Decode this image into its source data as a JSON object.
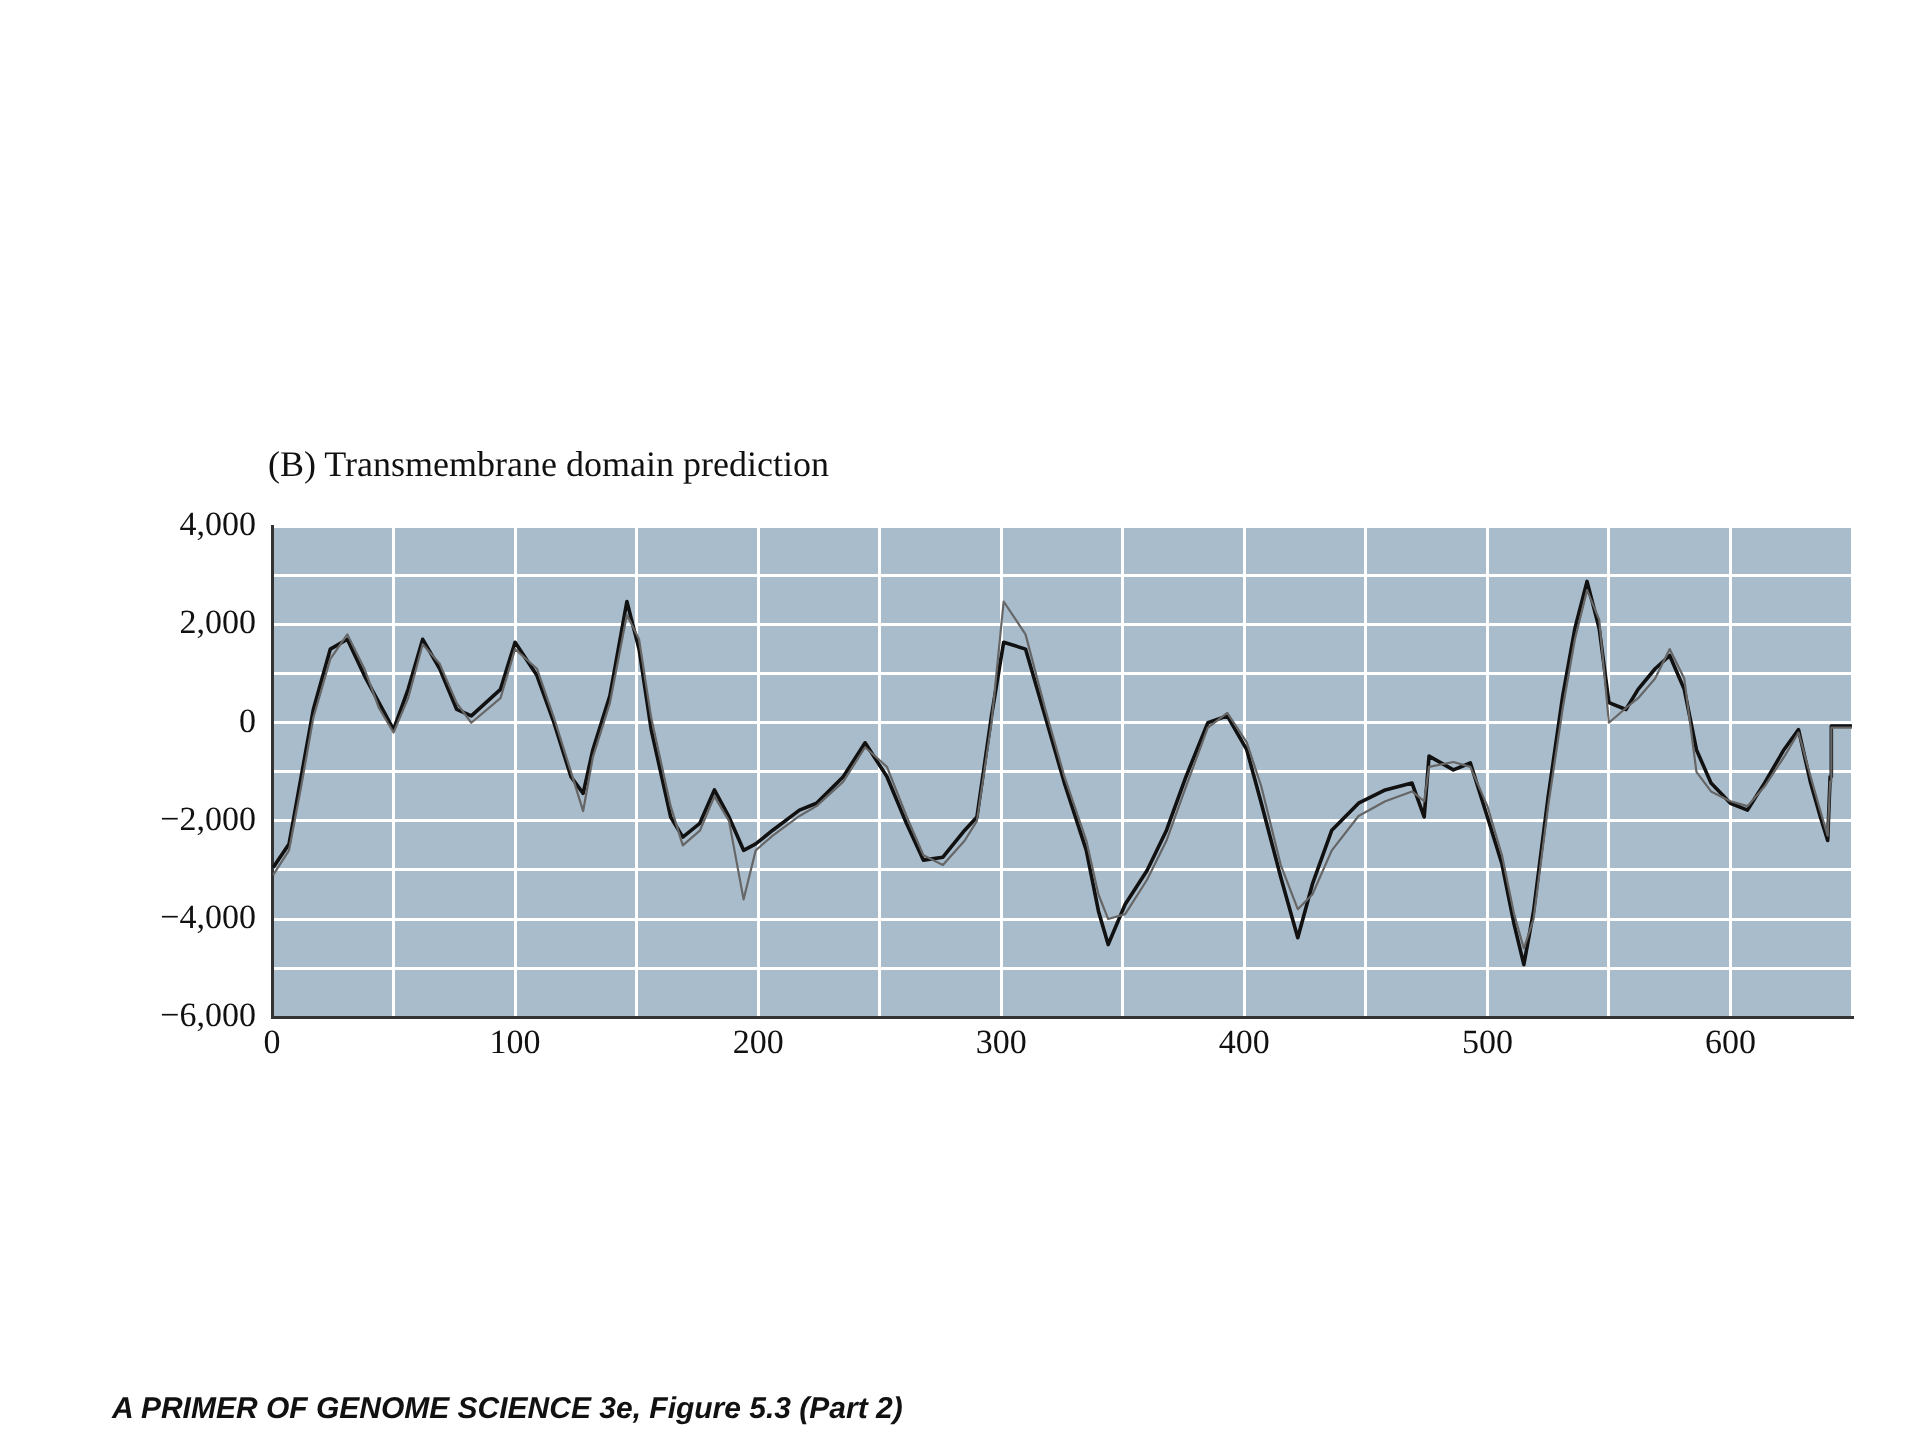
{
  "chart_data": {
    "type": "line",
    "title": "(B) Transmembrane domain prediction",
    "annotations": [
      "A PRIMER OF GENOME SCIENCE 3e, Figure 5.3 (Part 2)"
    ],
    "x": [
      0.5,
      7,
      12,
      17,
      24,
      31,
      38,
      44,
      50,
      56,
      62,
      69,
      76,
      82,
      94,
      100,
      109,
      116,
      123,
      128,
      132,
      139,
      146,
      151,
      156,
      164,
      169,
      176,
      182,
      188,
      194,
      199,
      206,
      217,
      224,
      235,
      244,
      253,
      261,
      268,
      276,
      285,
      290,
      296,
      301,
      310,
      318,
      326,
      335,
      340,
      344,
      351,
      360,
      368,
      376,
      385,
      393,
      401,
      407,
      415,
      422,
      428,
      436,
      447,
      458,
      469,
      474,
      476,
      486,
      493,
      500,
      506,
      511,
      515,
      519,
      525,
      531,
      536,
      541,
      546,
      550,
      557,
      562,
      569,
      575,
      581,
      586,
      592,
      600,
      607,
      614,
      622,
      628,
      633,
      637,
      640,
      641,
      641.5,
      650
    ],
    "series": [
      {
        "color": "#111111",
        "values": [
          -2950,
          -2470,
          -1100,
          270,
          1500,
          1700,
          960,
          410,
          -140,
          680,
          1700,
          1100,
          270,
          140,
          680,
          1640,
          960,
          0,
          -1100,
          -1440,
          -550,
          550,
          2470,
          1500,
          -140,
          -1920,
          -2330,
          -2050,
          -1370,
          -1920,
          -2600,
          -2470,
          -2190,
          -1780,
          -1640,
          -1100,
          -410,
          -1100,
          -2050,
          -2800,
          -2740,
          -2190,
          -1920,
          140,
          1640,
          1500,
          140,
          -1230,
          -2600,
          -3840,
          -4520,
          -3700,
          -3010,
          -2190,
          -1100,
          0,
          140,
          -550,
          -1640,
          -3150,
          -4380,
          -3290,
          -2190,
          -1640,
          -1370,
          -1230,
          -1920,
          -680,
          -960,
          -820,
          -1920,
          -2880,
          -4110,
          -4930,
          -3840,
          -1510,
          550,
          1920,
          2880,
          1920,
          410,
          270,
          680,
          1100,
          1370,
          680,
          -550,
          -1230,
          -1640,
          -1780,
          -1230,
          -550,
          -140,
          -1230,
          -1920,
          -2400,
          -1100,
          -70,
          -70
        ]
      },
      {
        "color": "#666666",
        "values": [
          -3100,
          -2600,
          -1300,
          100,
          1300,
          1800,
          1100,
          300,
          -200,
          500,
          1600,
          1200,
          400,
          0,
          500,
          1500,
          1100,
          100,
          -1000,
          -1800,
          -700,
          400,
          2200,
          1700,
          100,
          -1700,
          -2500,
          -2200,
          -1500,
          -2000,
          -3600,
          -2600,
          -2300,
          -1900,
          -1700,
          -1200,
          -500,
          -900,
          -1900,
          -2700,
          -2900,
          -2400,
          -2000,
          0,
          2470,
          1800,
          300,
          -1100,
          -2400,
          -3500,
          -4000,
          -3900,
          -3200,
          -2400,
          -1300,
          -100,
          200,
          -400,
          -1300,
          -2900,
          -3800,
          -3500,
          -2600,
          -1900,
          -1600,
          -1400,
          -1600,
          -900,
          -800,
          -900,
          -1700,
          -2700,
          -3900,
          -4600,
          -4000,
          -1700,
          300,
          1700,
          2700,
          2100,
          0,
          300,
          500,
          900,
          1500,
          900,
          -1000,
          -1400,
          -1600,
          -1700,
          -1300,
          -700,
          -200,
          -1100,
          -1800,
          -2300,
          -1200,
          -100,
          -100
        ]
      }
    ],
    "xlim": [
      0,
      650
    ],
    "xticks": [
      0,
      {
        "value": 50,
        "label": null
      },
      100,
      {
        "value": 150,
        "label": null
      },
      200,
      {
        "value": 250,
        "label": null
      },
      300,
      {
        "value": 350,
        "label": null
      },
      400,
      {
        "value": 450,
        "label": null
      },
      500,
      {
        "value": 550,
        "label": null
      },
      600,
      {
        "value": 650,
        "label": null
      }
    ],
    "ylim": [
      -6000,
      4000
    ],
    "yticks": [
      {
        "value": -6000,
        "label": "−6,000"
      },
      {
        "value": -5000,
        "label": null
      },
      {
        "value": -4000,
        "label": "−4,000"
      },
      {
        "value": -3000,
        "label": null
      },
      {
        "value": -2000,
        "label": "−2,000"
      },
      {
        "value": -1000,
        "label": null
      },
      0,
      {
        "value": 1000,
        "label": null
      },
      {
        "value": 2000,
        "label": "2,000"
      },
      {
        "value": 3000,
        "label": null
      },
      {
        "value": 4000,
        "label": "4,000"
      }
    ],
    "grid": true,
    "legend": false,
    "marker": "none",
    "line_style": "solid"
  }
}
